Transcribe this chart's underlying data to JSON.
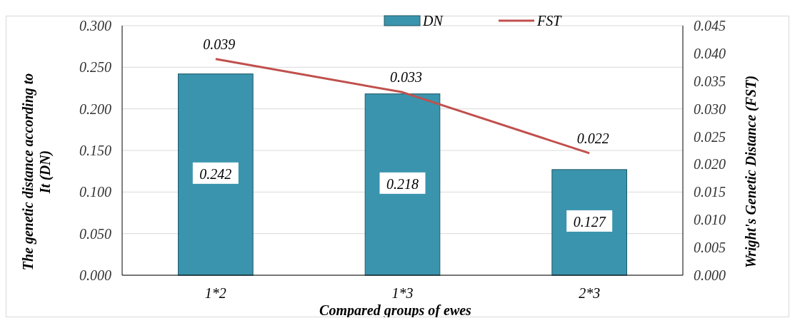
{
  "chart_data": {
    "type": "bar",
    "xlabel": "Compared groups of ewes",
    "ylabel": "The genetic distance according to It (DN)",
    "y2label": "Wright's Genetic Distance (FST)",
    "categories": [
      "1*2",
      "1*3",
      "2*3"
    ],
    "series": [
      {
        "name": "DN",
        "color": "#3a94ad",
        "values": [
          0.242,
          0.218,
          0.127
        ]
      },
      {
        "name": "FST",
        "type": "line",
        "axis": "y2",
        "color": "#c0504d",
        "values": [
          0.039,
          0.033,
          0.022
        ]
      }
    ],
    "ylim": [
      0,
      0.3
    ],
    "yticks": [
      "0.000",
      "0.050",
      "0.100",
      "0.150",
      "0.200",
      "0.250",
      "0.300"
    ],
    "y2lim": [
      0,
      0.045
    ],
    "y2ticks": [
      "0.000",
      "0.005",
      "0.010",
      "0.015",
      "0.020",
      "0.025",
      "0.030",
      "0.035",
      "0.040",
      "0.045"
    ],
    "grid": "y",
    "legend": "top",
    "data_labels": true,
    "marker": "none"
  }
}
